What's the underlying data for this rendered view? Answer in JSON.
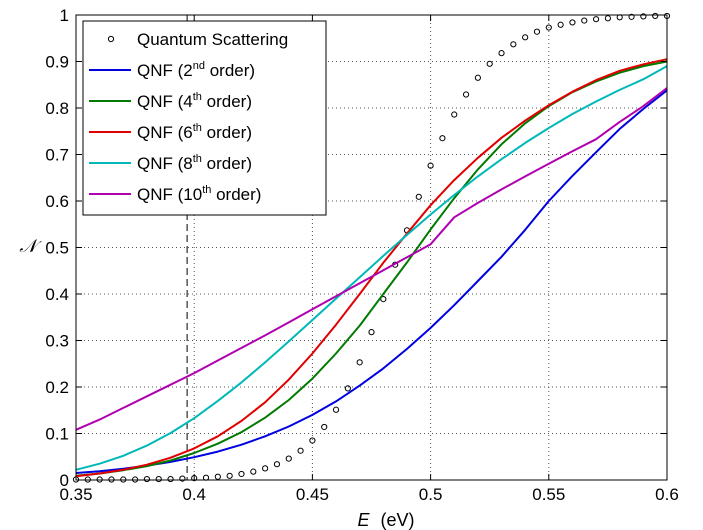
{
  "chart_data": {
    "type": "line",
    "xlabel_var": "E",
    "xlabel_unit": "(eV)",
    "ylabel": "𝒩",
    "xlim": [
      0.35,
      0.6
    ],
    "ylim": [
      0,
      1
    ],
    "xticks": [
      "0.35",
      "0.4",
      "0.45",
      "0.5",
      "0.55",
      "0.6"
    ],
    "yticks": [
      "0",
      "0.1",
      "0.2",
      "0.3",
      "0.4",
      "0.5",
      "0.6",
      "0.7",
      "0.8",
      "0.9",
      "1"
    ],
    "grid": true,
    "legend_position": "top-left",
    "vertical_dashed_line_x": 0.397,
    "series": [
      {
        "name_main": "Quantum Scattering",
        "name_sup": "",
        "name_tail": "",
        "color": "#000000",
        "style": "markers",
        "x": [
          0.35,
          0.355,
          0.36,
          0.365,
          0.37,
          0.375,
          0.38,
          0.385,
          0.39,
          0.395,
          0.4,
          0.405,
          0.41,
          0.415,
          0.42,
          0.425,
          0.43,
          0.435,
          0.44,
          0.445,
          0.45,
          0.455,
          0.46,
          0.465,
          0.47,
          0.475,
          0.48,
          0.485,
          0.49,
          0.495,
          0.5,
          0.505,
          0.51,
          0.515,
          0.52,
          0.525,
          0.53,
          0.535,
          0.54,
          0.545,
          0.55,
          0.555,
          0.56,
          0.565,
          0.57,
          0.575,
          0.58,
          0.585,
          0.59,
          0.595,
          0.6
        ],
        "y": [
          0.001,
          0.001,
          0.001,
          0.001,
          0.001,
          0.001,
          0.002,
          0.002,
          0.002,
          0.003,
          0.004,
          0.005,
          0.007,
          0.009,
          0.013,
          0.018,
          0.025,
          0.034,
          0.046,
          0.063,
          0.085,
          0.114,
          0.151,
          0.197,
          0.253,
          0.318,
          0.389,
          0.463,
          0.537,
          0.609,
          0.676,
          0.735,
          0.786,
          0.829,
          0.865,
          0.895,
          0.918,
          0.937,
          0.952,
          0.964,
          0.973,
          0.979,
          0.984,
          0.988,
          0.991,
          0.993,
          0.995,
          0.996,
          0.997,
          0.998,
          0.998
        ]
      },
      {
        "name_main": "QNF (2",
        "name_sup": "nd",
        "name_tail": " order)",
        "color": "#0000e0",
        "style": "line",
        "x": [
          0.35,
          0.36,
          0.37,
          0.38,
          0.39,
          0.4,
          0.41,
          0.42,
          0.43,
          0.44,
          0.45,
          0.46,
          0.47,
          0.48,
          0.49,
          0.5,
          0.51,
          0.52,
          0.53,
          0.54,
          0.55,
          0.56,
          0.57,
          0.58,
          0.59,
          0.6
        ],
        "y": [
          0.015,
          0.019,
          0.024,
          0.031,
          0.039,
          0.049,
          0.061,
          0.076,
          0.094,
          0.115,
          0.14,
          0.169,
          0.203,
          0.24,
          0.282,
          0.327,
          0.376,
          0.428,
          0.48,
          0.538,
          0.6,
          0.654,
          0.705,
          0.755,
          0.798,
          0.838
        ]
      },
      {
        "name_main": "QNF (4",
        "name_sup": "th",
        "name_tail": " order)",
        "color": "#007a00",
        "style": "line",
        "x": [
          0.35,
          0.36,
          0.37,
          0.38,
          0.39,
          0.4,
          0.41,
          0.42,
          0.43,
          0.44,
          0.45,
          0.46,
          0.47,
          0.48,
          0.49,
          0.5,
          0.51,
          0.52,
          0.53,
          0.54,
          0.55,
          0.56,
          0.57,
          0.58,
          0.59,
          0.6
        ],
        "y": [
          0.009,
          0.014,
          0.021,
          0.03,
          0.042,
          0.058,
          0.078,
          0.103,
          0.134,
          0.172,
          0.218,
          0.272,
          0.332,
          0.4,
          0.468,
          0.539,
          0.606,
          0.668,
          0.722,
          0.767,
          0.804,
          0.834,
          0.857,
          0.876,
          0.89,
          0.9
        ]
      },
      {
        "name_main": "QNF (6",
        "name_sup": "th",
        "name_tail": " order)",
        "color": "#e00000",
        "style": "line",
        "x": [
          0.35,
          0.36,
          0.37,
          0.38,
          0.39,
          0.4,
          0.41,
          0.42,
          0.43,
          0.44,
          0.45,
          0.46,
          0.47,
          0.48,
          0.49,
          0.5,
          0.51,
          0.52,
          0.53,
          0.54,
          0.55,
          0.56,
          0.57,
          0.58,
          0.59,
          0.6
        ],
        "y": [
          0.008,
          0.014,
          0.022,
          0.033,
          0.048,
          0.068,
          0.094,
          0.127,
          0.167,
          0.216,
          0.272,
          0.334,
          0.4,
          0.467,
          0.53,
          0.591,
          0.645,
          0.693,
          0.736,
          0.773,
          0.806,
          0.835,
          0.86,
          0.88,
          0.894,
          0.905
        ]
      },
      {
        "name_main": "QNF (8",
        "name_sup": "th",
        "name_tail": " order)",
        "color": "#00b8b8",
        "style": "line",
        "x": [
          0.35,
          0.36,
          0.37,
          0.38,
          0.39,
          0.4,
          0.41,
          0.42,
          0.43,
          0.44,
          0.45,
          0.46,
          0.47,
          0.48,
          0.49,
          0.5,
          0.51,
          0.52,
          0.53,
          0.54,
          0.55,
          0.56,
          0.57,
          0.58,
          0.59,
          0.6
        ],
        "y": [
          0.022,
          0.035,
          0.052,
          0.074,
          0.101,
          0.133,
          0.17,
          0.21,
          0.253,
          0.298,
          0.344,
          0.39,
          0.436,
          0.482,
          0.527,
          0.571,
          0.613,
          0.653,
          0.69,
          0.725,
          0.757,
          0.787,
          0.814,
          0.839,
          0.862,
          0.89
        ]
      },
      {
        "name_main": "QNF (10",
        "name_sup": "th",
        "name_tail": " order)",
        "color": "#b000b0",
        "style": "line",
        "x": [
          0.35,
          0.36,
          0.37,
          0.38,
          0.39,
          0.4,
          0.41,
          0.42,
          0.43,
          0.44,
          0.45,
          0.46,
          0.47,
          0.48,
          0.49,
          0.5,
          0.51,
          0.52,
          0.53,
          0.54,
          0.55,
          0.56,
          0.57,
          0.58,
          0.59,
          0.6
        ],
        "y": [
          0.108,
          0.13,
          0.155,
          0.18,
          0.205,
          0.23,
          0.257,
          0.284,
          0.311,
          0.339,
          0.367,
          0.395,
          0.423,
          0.451,
          0.479,
          0.507,
          0.565,
          0.596,
          0.625,
          0.653,
          0.68,
          0.707,
          0.733,
          0.77,
          0.804,
          0.843
        ]
      }
    ]
  }
}
